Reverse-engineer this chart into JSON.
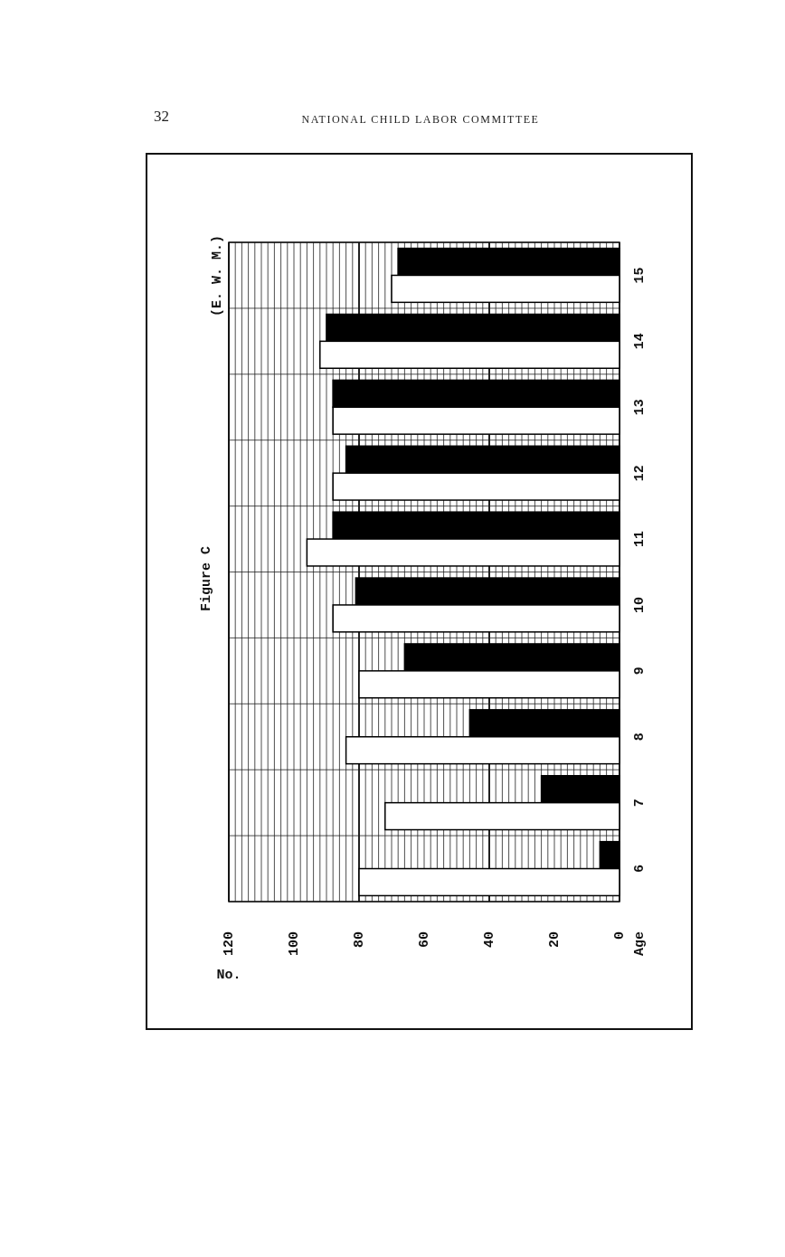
{
  "chart_data": {
    "type": "bar",
    "orientation": "horizontal",
    "title": "Figure C",
    "xlabel": "No.",
    "ylabel": "Age",
    "annotations": [
      "32",
      "NATIONAL CHILD LABOR COMMITTEE",
      "(E. W. M.)"
    ],
    "categories": [
      "15",
      "14",
      "13",
      "12",
      "11",
      "10",
      "9",
      "8",
      "7",
      "6"
    ],
    "series": [
      {
        "color": "#000000",
        "values": [
          68,
          90,
          88,
          84,
          88,
          81,
          66,
          46,
          24,
          6
        ]
      },
      {
        "color": "#ffffff",
        "values": [
          70,
          92,
          88,
          88,
          96,
          88,
          80,
          84,
          72,
          80
        ]
      }
    ],
    "xlim": [
      120,
      0
    ],
    "xticks": [
      0,
      {
        "value": 2,
        "label": null
      },
      {
        "value": 4,
        "label": null
      },
      {
        "value": 6,
        "label": null
      },
      {
        "value": 8,
        "label": null
      },
      {
        "value": 10,
        "label": null
      },
      {
        "value": 12,
        "label": null
      },
      {
        "value": 14,
        "label": null
      },
      {
        "value": 16,
        "label": null
      },
      {
        "value": 18,
        "label": null
      },
      20,
      {
        "value": 22,
        "label": null
      },
      {
        "value": 24,
        "label": null
      },
      {
        "value": 26,
        "label": null
      },
      {
        "value": 28,
        "label": null
      },
      {
        "value": 30,
        "label": null
      },
      {
        "value": 32,
        "label": null
      },
      {
        "value": 34,
        "label": null
      },
      {
        "value": 36,
        "label": null
      },
      {
        "value": 38,
        "label": null
      },
      40,
      {
        "value": 42,
        "label": null
      },
      {
        "value": 44,
        "label": null
      },
      {
        "value": 46,
        "label": null
      },
      {
        "value": 48,
        "label": null
      },
      {
        "value": 50,
        "label": null
      },
      {
        "value": 52,
        "label": null
      },
      {
        "value": 54,
        "label": null
      },
      {
        "value": 56,
        "label": null
      },
      {
        "value": 58,
        "label": null
      },
      60,
      {
        "value": 62,
        "label": null
      },
      {
        "value": 64,
        "label": null
      },
      {
        "value": 66,
        "label": null
      },
      {
        "value": 68,
        "label": null
      },
      {
        "value": 70,
        "label": null
      },
      {
        "value": 72,
        "label": null
      },
      {
        "value": 74,
        "label": null
      },
      {
        "value": 76,
        "label": null
      },
      {
        "value": 78,
        "label": null
      },
      80,
      {
        "value": 82,
        "label": null
      },
      {
        "value": 84,
        "label": null
      },
      {
        "value": 86,
        "label": null
      },
      {
        "value": 88,
        "label": null
      },
      {
        "value": 90,
        "label": null
      },
      {
        "value": 92,
        "label": null
      },
      {
        "value": 94,
        "label": null
      },
      {
        "value": 96,
        "label": null
      },
      {
        "value": 98,
        "label": null
      },
      100,
      {
        "value": 102,
        "label": null
      },
      {
        "value": 104,
        "label": null
      },
      {
        "value": 106,
        "label": null
      },
      {
        "value": 108,
        "label": null
      },
      {
        "value": 110,
        "label": null
      },
      {
        "value": 112,
        "label": null
      },
      {
        "value": 114,
        "label": null
      },
      {
        "value": 116,
        "label": null
      },
      {
        "value": 118,
        "label": null
      },
      120
    ],
    "grid": true
  }
}
